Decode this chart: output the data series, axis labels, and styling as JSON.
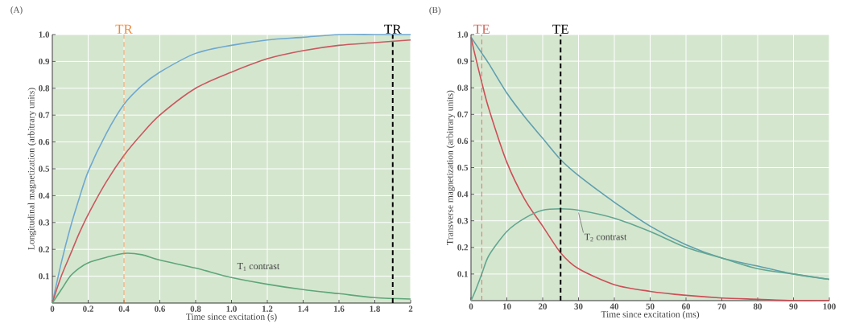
{
  "chart_data": [
    {
      "type": "line",
      "title": "(A)",
      "xlabel": "Time since excitation (s)",
      "ylabel": "Longitudinal magnetization (arbitrary units)",
      "x": [
        0,
        0.05,
        0.1,
        0.15,
        0.2,
        0.3,
        0.4,
        0.5,
        0.6,
        0.8,
        1.0,
        1.2,
        1.4,
        1.6,
        1.8,
        2.0
      ],
      "series": [
        {
          "color": "#6fa8cf",
          "values": [
            0,
            0.15,
            0.28,
            0.39,
            0.49,
            0.63,
            0.74,
            0.81,
            0.86,
            0.93,
            0.96,
            0.98,
            0.99,
            1.0,
            1.0,
            1.0
          ]
        },
        {
          "color": "#c9585f",
          "values": [
            0,
            0.1,
            0.18,
            0.26,
            0.33,
            0.45,
            0.55,
            0.63,
            0.7,
            0.8,
            0.86,
            0.91,
            0.94,
            0.96,
            0.97,
            0.98
          ]
        },
        {
          "color": "#5ea679",
          "values": [
            0,
            0.05,
            0.1,
            0.13,
            0.15,
            0.17,
            0.185,
            0.18,
            0.16,
            0.13,
            0.095,
            0.07,
            0.05,
            0.035,
            0.02,
            0.015
          ]
        }
      ],
      "xlim": [
        0,
        2
      ],
      "ylim": [
        0,
        1
      ],
      "xticks": [
        0,
        0.2,
        0.4,
        0.6,
        0.8,
        {
          "value": 1,
          "label": "1.0"
        },
        1.2,
        1.4,
        1.6,
        1.8,
        2
      ],
      "yticks": [
        0.1,
        0.2,
        0.3,
        0.4,
        0.5,
        0.6,
        0.7,
        0.8,
        0.9,
        {
          "value": 1,
          "label": "1.0"
        }
      ],
      "grid": true,
      "ref_lines": [
        {
          "axis": "x",
          "value": 0.4,
          "label": "TR",
          "color": "#f0883a",
          "line_style": "dashed"
        },
        {
          "axis": "x",
          "value": 1.9,
          "label": "TR",
          "color": "#000000",
          "line_style": "dashed"
        }
      ],
      "annotations": [
        "T$_{1}$ contrast"
      ]
    },
    {
      "type": "line",
      "title": "(B)",
      "xlabel": "Time since excitation (ms)",
      "ylabel": "Transverse magnetization (arbitrary units)",
      "x": [
        0,
        1,
        3,
        5,
        10,
        15,
        20,
        25,
        30,
        40,
        50,
        60,
        70,
        80,
        90,
        100
      ],
      "series": [
        {
          "color": "#5e9fae",
          "values": [
            0.99,
            0.97,
            0.93,
            0.89,
            0.78,
            0.69,
            0.61,
            0.53,
            0.47,
            0.37,
            0.28,
            0.21,
            0.16,
            0.13,
            0.1,
            0.08
          ]
        },
        {
          "color": "#cc4f57",
          "values": [
            0.99,
            0.93,
            0.82,
            0.72,
            0.52,
            0.38,
            0.28,
            0.18,
            0.12,
            0.06,
            0.035,
            0.02,
            0.01,
            0.005,
            0,
            0
          ]
        },
        {
          "color": "#62a690",
          "values": [
            0,
            0.03,
            0.1,
            0.17,
            0.26,
            0.31,
            0.34,
            0.345,
            0.34,
            0.31,
            0.26,
            0.2,
            0.16,
            0.12,
            0.1,
            0.08
          ]
        }
      ],
      "xlim": [
        0,
        100
      ],
      "ylim": [
        0,
        1
      ],
      "xticks": [
        0,
        10,
        20,
        30,
        40,
        50,
        60,
        70,
        80,
        90,
        100
      ],
      "yticks": [
        0.1,
        0.2,
        0.3,
        0.4,
        0.5,
        0.6,
        0.7,
        0.8,
        0.9,
        {
          "value": 1,
          "label": "1.0"
        }
      ],
      "grid": true,
      "ref_lines": [
        {
          "axis": "x",
          "value": 3,
          "label": "TE",
          "color": "#d06a5e",
          "line_style": "dashed"
        },
        {
          "axis": "x",
          "value": 25,
          "label": "TE",
          "color": "#000000",
          "line_style": "dashed"
        }
      ],
      "annotations": [
        {
          "text": "T$_{2}$ contrast",
          "x": 30,
          "y": 0.34
        }
      ]
    }
  ]
}
